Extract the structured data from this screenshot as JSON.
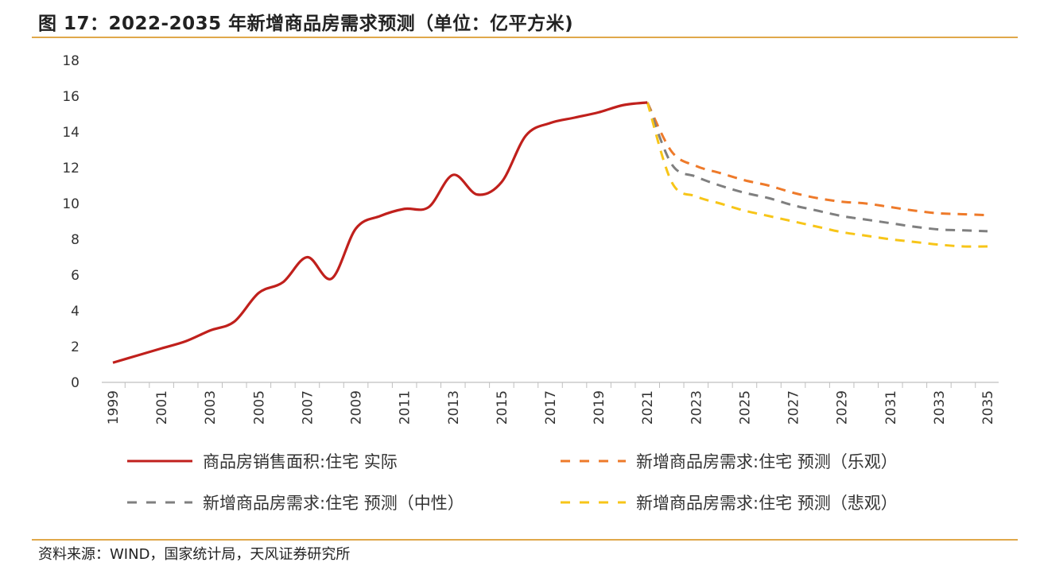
{
  "title": "图 17：2022-2035 年新增商品房需求预测（单位：亿平方米)",
  "source": "资料来源：WIND，国家统计局，天风证券研究所",
  "chart_data": {
    "type": "line",
    "ylim": [
      0,
      18
    ],
    "yticks": [
      0,
      2,
      4,
      6,
      8,
      10,
      12,
      14,
      16,
      18
    ],
    "xlim": [
      1999,
      2035
    ],
    "xticks": [
      1999,
      2001,
      2003,
      2005,
      2007,
      2009,
      2011,
      2013,
      2015,
      2017,
      2019,
      2021,
      2023,
      2025,
      2027,
      2029,
      2031,
      2033,
      2035
    ],
    "grid": false,
    "legend_position": "bottom",
    "series": [
      {
        "name": "商品房销售面积:住宅 实际",
        "color": "#c0201c",
        "style": "solid",
        "x": [
          1999,
          2000,
          2001,
          2002,
          2003,
          2004,
          2005,
          2006,
          2007,
          2008,
          2009,
          2010,
          2011,
          2012,
          2013,
          2014,
          2015,
          2016,
          2017,
          2018,
          2019,
          2020,
          2021
        ],
        "values": [
          1.1,
          1.5,
          1.9,
          2.3,
          2.9,
          3.4,
          5.0,
          5.6,
          7.0,
          5.8,
          8.6,
          9.3,
          9.7,
          9.8,
          11.6,
          10.5,
          11.2,
          13.8,
          14.5,
          14.8,
          15.1,
          15.5,
          15.65
        ]
      },
      {
        "name": "新增商品房需求:住宅 预测（乐观）",
        "color": "#ee7a2a",
        "style": "dashed",
        "x": [
          2021,
          2022,
          2023,
          2024,
          2025,
          2026,
          2027,
          2028,
          2029,
          2030,
          2031,
          2032,
          2033,
          2034,
          2035
        ],
        "values": [
          15.65,
          12.9,
          12.1,
          11.7,
          11.3,
          11.0,
          10.6,
          10.3,
          10.1,
          10.0,
          9.8,
          9.6,
          9.45,
          9.4,
          9.35
        ]
      },
      {
        "name": "新增商品房需求:住宅 预测（中性）",
        "color": "#7f7f7f",
        "style": "dashed",
        "x": [
          2021,
          2022,
          2023,
          2024,
          2025,
          2026,
          2027,
          2028,
          2029,
          2030,
          2031,
          2032,
          2033,
          2034,
          2035
        ],
        "values": [
          15.65,
          12.2,
          11.5,
          11.0,
          10.6,
          10.3,
          9.9,
          9.6,
          9.3,
          9.1,
          8.9,
          8.7,
          8.55,
          8.5,
          8.45
        ]
      },
      {
        "name": "新增商品房需求:住宅 预测（悲观）",
        "color": "#f7c518",
        "style": "dashed",
        "x": [
          2021,
          2022,
          2023,
          2024,
          2025,
          2026,
          2027,
          2028,
          2029,
          2030,
          2031,
          2032,
          2033,
          2034,
          2035
        ],
        "values": [
          15.65,
          11.2,
          10.4,
          10.0,
          9.6,
          9.3,
          9.0,
          8.7,
          8.4,
          8.2,
          8.0,
          7.85,
          7.7,
          7.6,
          7.6
        ]
      }
    ]
  }
}
